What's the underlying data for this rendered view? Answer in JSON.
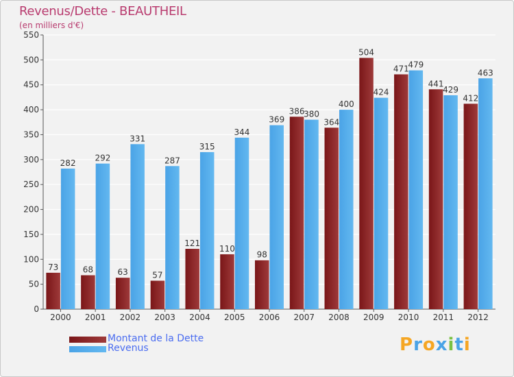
{
  "title": "Revenus/Dette - BEAUTHEIL",
  "subtitle": "(en milliers d'€)",
  "colors": {
    "dette": "#7a1618",
    "dette_light": "#9e3a3a",
    "revenus": "#4aa3e6",
    "revenus_light": "#63b8f0",
    "axis_text": "#333333",
    "grid": "#ffffff",
    "title": "#b83a6e",
    "legend_text": "#4a6cf0"
  },
  "legend": {
    "dette_label": "Montant de la Dette",
    "revenus_label": "Revenus"
  },
  "brand": {
    "letters": [
      "P",
      "r",
      "o",
      "x",
      "i",
      "t",
      "i"
    ],
    "colors": [
      "#f5a623",
      "#4aa3e6",
      "#f5a623",
      "#4aa3e6",
      "#7ac143",
      "#4aa3e6",
      "#f5a623"
    ]
  },
  "chart_data": {
    "type": "bar",
    "categories": [
      "2000",
      "2001",
      "2002",
      "2003",
      "2004",
      "2005",
      "2006",
      "2007",
      "2008",
      "2009",
      "2010",
      "2011",
      "2012"
    ],
    "series": [
      {
        "name": "Montant de la Dette",
        "values": [
          73,
          68,
          63,
          57,
          121,
          110,
          98,
          386,
          364,
          504,
          471,
          441,
          412
        ]
      },
      {
        "name": "Revenus",
        "values": [
          282,
          292,
          331,
          287,
          315,
          344,
          369,
          380,
          400,
          424,
          479,
          429,
          463
        ]
      }
    ],
    "yticks": [
      0,
      50,
      100,
      150,
      200,
      250,
      300,
      350,
      400,
      450,
      500,
      550
    ],
    "ylim": [
      0,
      550
    ],
    "grid": true,
    "legend_position": "bottom-left"
  }
}
